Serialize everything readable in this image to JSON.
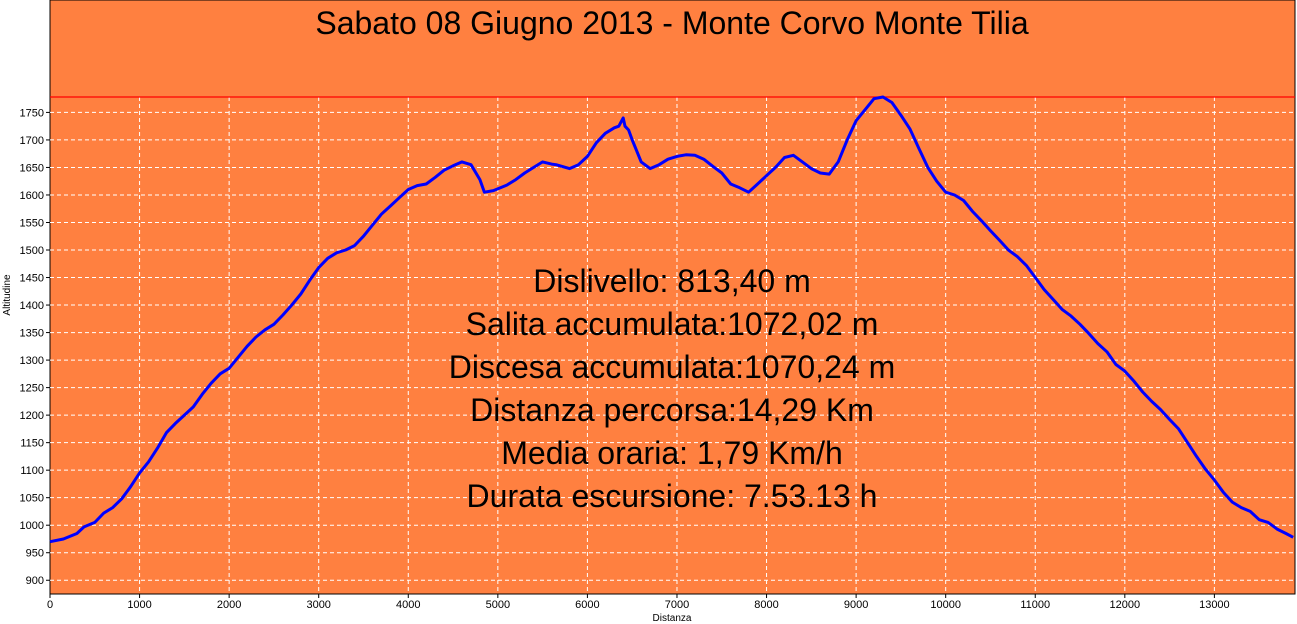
{
  "chart_data": {
    "type": "area",
    "title": "Sabato 08 Giugno 2013 - Monte Corvo Monte Tilia",
    "xlabel": "Distanza",
    "ylabel": "Altitudine",
    "xlim": [
      0,
      13900
    ],
    "ylim": [
      875,
      1778
    ],
    "x_ticks": [
      0,
      1000,
      2000,
      3000,
      4000,
      5000,
      6000,
      7000,
      8000,
      9000,
      10000,
      11000,
      12000,
      13000
    ],
    "y_ticks": [
      900,
      950,
      1000,
      1050,
      1100,
      1150,
      1200,
      1250,
      1300,
      1350,
      1400,
      1450,
      1500,
      1550,
      1600,
      1650,
      1700,
      1750
    ],
    "grid": true,
    "reference_line": 1778,
    "colors": {
      "background": "#ff8040",
      "line": "#0000ff",
      "reference_line": "#ff0000",
      "grid": "#ffffff"
    },
    "series": [
      {
        "name": "",
        "x": [
          0,
          150,
          300,
          380,
          500,
          600,
          700,
          800,
          900,
          1000,
          1100,
          1200,
          1300,
          1400,
          1500,
          1600,
          1700,
          1800,
          1900,
          2000,
          2100,
          2200,
          2300,
          2400,
          2500,
          2600,
          2700,
          2800,
          2900,
          3000,
          3100,
          3200,
          3300,
          3400,
          3500,
          3600,
          3700,
          3800,
          3900,
          4000,
          4100,
          4200,
          4300,
          4400,
          4500,
          4600,
          4700,
          4800,
          4850,
          4950,
          5100,
          5200,
          5300,
          5400,
          5500,
          5600,
          5650,
          5800,
          5900,
          6000,
          6100,
          6200,
          6300,
          6350,
          6400,
          6420,
          6460,
          6500,
          6600,
          6700,
          6800,
          6900,
          7000,
          7100,
          7200,
          7300,
          7400,
          7500,
          7600,
          7700,
          7800,
          7900,
          8000,
          8100,
          8200,
          8300,
          8400,
          8500,
          8600,
          8700,
          8800,
          8900,
          9000,
          9100,
          9200,
          9300,
          9400,
          9500,
          9600,
          9700,
          9800,
          9900,
          10000,
          10100,
          10200,
          10300,
          10400,
          10500,
          10600,
          10700,
          10800,
          10900,
          11000,
          11100,
          11200,
          11300,
          11400,
          11500,
          11600,
          11700,
          11800,
          11900,
          12000,
          12100,
          12200,
          12300,
          12400,
          12500,
          12600,
          12700,
          12800,
          12900,
          13000,
          13100,
          13200,
          13300,
          13400,
          13500,
          13600,
          13700,
          13800,
          13880
        ],
        "y": [
          970,
          975,
          985,
          997,
          1005,
          1022,
          1032,
          1048,
          1070,
          1095,
          1115,
          1140,
          1168,
          1185,
          1200,
          1215,
          1238,
          1258,
          1275,
          1285,
          1305,
          1325,
          1342,
          1355,
          1365,
          1382,
          1400,
          1420,
          1445,
          1468,
          1485,
          1495,
          1500,
          1508,
          1525,
          1545,
          1565,
          1580,
          1595,
          1610,
          1617,
          1620,
          1632,
          1645,
          1653,
          1660,
          1655,
          1628,
          1605,
          1608,
          1618,
          1628,
          1640,
          1650,
          1660,
          1656,
          1655,
          1648,
          1655,
          1670,
          1695,
          1712,
          1722,
          1725,
          1740,
          1725,
          1718,
          1700,
          1660,
          1648,
          1655,
          1665,
          1670,
          1673,
          1672,
          1665,
          1652,
          1640,
          1620,
          1613,
          1605,
          1620,
          1635,
          1650,
          1668,
          1672,
          1660,
          1648,
          1640,
          1638,
          1660,
          1700,
          1735,
          1755,
          1775,
          1778,
          1768,
          1745,
          1720,
          1685,
          1650,
          1625,
          1605,
          1600,
          1590,
          1570,
          1553,
          1535,
          1518,
          1500,
          1488,
          1472,
          1450,
          1428,
          1410,
          1392,
          1380,
          1365,
          1348,
          1330,
          1315,
          1292,
          1280,
          1262,
          1242,
          1225,
          1210,
          1192,
          1175,
          1150,
          1125,
          1102,
          1082,
          1060,
          1042,
          1032,
          1025,
          1010,
          1005,
          993,
          985,
          978
        ]
      }
    ],
    "annotations": [
      "Dislivello: 813,40 m",
      "Salita accumulata:1072,02 m",
      "Discesa accumulata:1070,24 m",
      "Distanza percorsa:14,29 Km",
      "Media oraria: 1,79 Km/h",
      "Durata escursione: 7.53.13 h"
    ]
  }
}
